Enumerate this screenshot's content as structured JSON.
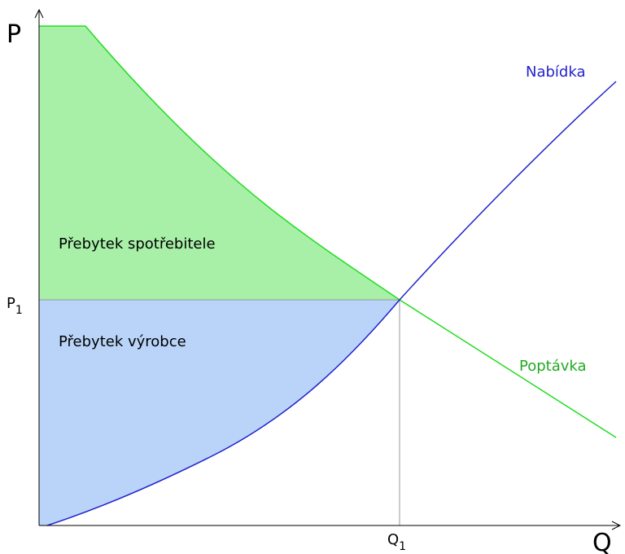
{
  "axes": {
    "y": "P",
    "x": "Q"
  },
  "equilibrium": {
    "price": {
      "main": "P",
      "sub": "1"
    },
    "quantity": {
      "main": "Q",
      "sub": "1"
    }
  },
  "curves": {
    "supply": "Nabídka",
    "demand": "Poptávka"
  },
  "areas": {
    "consumer_surplus": "Přebytek spotřebitele",
    "producer_surplus": "Přebytek výrobce"
  }
}
